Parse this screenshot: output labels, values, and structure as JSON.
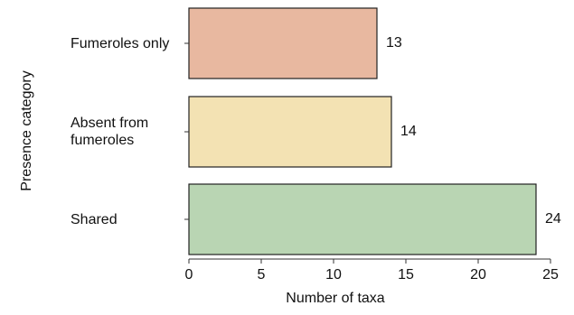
{
  "chart_data": {
    "type": "bar",
    "orientation": "horizontal",
    "categories": [
      "Fumeroles only",
      "Absent from\nfumeroles",
      "Shared"
    ],
    "values": [
      13,
      14,
      24
    ],
    "colors": [
      "#e8b8a0",
      "#f3e2b3",
      "#b9d5b3"
    ],
    "xlabel": "Number of taxa",
    "ylabel": "Presence category",
    "xlim": [
      0,
      25
    ],
    "xticks": [
      0,
      5,
      10,
      15,
      20,
      25
    ],
    "grid": false,
    "data_labels": [
      "13",
      "14",
      "24"
    ]
  }
}
